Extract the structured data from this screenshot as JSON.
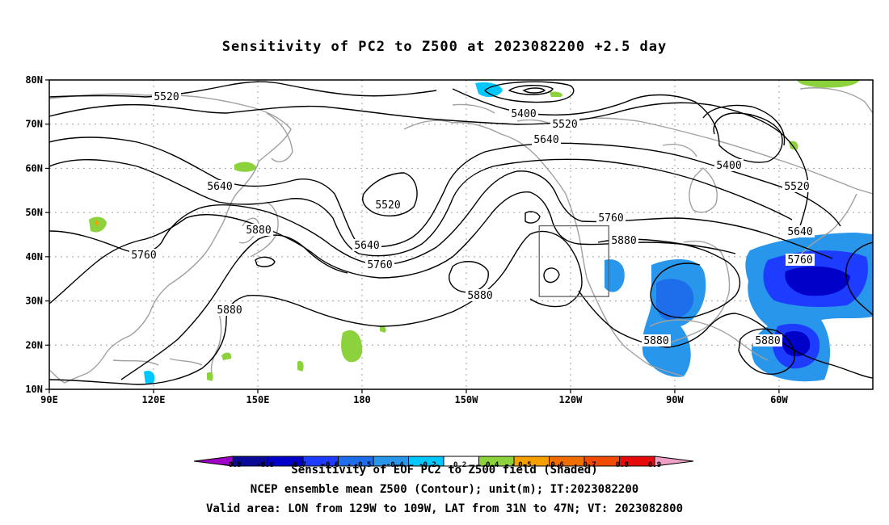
{
  "title": "Sensitivity of PC2 to Z500 at 2023082200 +2.5 day",
  "footer": {
    "line1": "Sensitivity of EOF PC2 to Z500 field (Shaded)",
    "line2": "NCEP ensemble mean Z500 (Contour); unit(m); IT:2023082200",
    "line3": "Valid area: LON from 129W to 109W, LAT from 31N to 47N; VT: 2023082800"
  },
  "map": {
    "lon_labels": [
      "90E",
      "120E",
      "150E",
      "180",
      "150W",
      "120W",
      "90W",
      "60W"
    ],
    "lat_labels": [
      "80N",
      "70N",
      "60N",
      "50N",
      "40N",
      "30N",
      "20N",
      "10N"
    ],
    "contour_labels": [
      "5400",
      "5400",
      "5520",
      "5520",
      "5520",
      "5520",
      "5640",
      "5640",
      "5640",
      "5640",
      "5760",
      "5760",
      "5760",
      "5760",
      "5880",
      "5880",
      "5880",
      "5880",
      "5880",
      "5880"
    ],
    "valid_area_box": {
      "lon_min": -129,
      "lon_max": -109,
      "lat_min": 31,
      "lat_max": 47
    }
  },
  "colorbar": {
    "labels": [
      "-0.9",
      "-0.8",
      "-0.7",
      "-0.6",
      "-0.5",
      "-0.4",
      "-0.2",
      "0.2",
      "0.4",
      "0.5",
      "0.6",
      "0.7",
      "0.8",
      "0.9"
    ],
    "colors": [
      "#a000c8",
      "#0a0a96",
      "#0000c8",
      "#1e3cff",
      "#1e6eeb",
      "#2896eb",
      "#00c8ff",
      "#ffffff",
      "#8cd23c",
      "#f5a000",
      "#f06e00",
      "#f04b00",
      "#e60a0a",
      "#f0a0c8"
    ]
  },
  "colors": {
    "contour": "#000000",
    "coast": "#a0a0a0",
    "grid": "#a0a0a0"
  }
}
